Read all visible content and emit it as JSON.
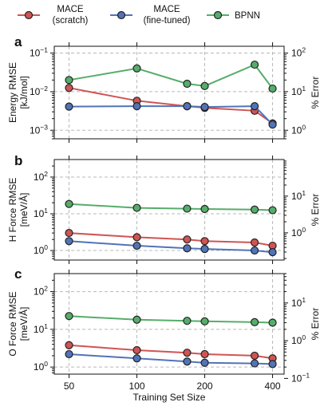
{
  "legend": [
    {
      "label_line1": "MACE",
      "label_line2": "(scratch)",
      "color": "#d05454"
    },
    {
      "label_line1": "MACE",
      "label_line2": "(fine-tuned)",
      "color": "#5173b7"
    },
    {
      "label_line1": "BPNN",
      "label_line2": "",
      "color": "#56ad6a"
    }
  ],
  "xlabel": "Training Set Size",
  "x_ticks": [
    50,
    100,
    200,
    400
  ],
  "chart_data": [
    {
      "panel": "a",
      "type": "line",
      "x_scale": "log",
      "y_scale": "log",
      "ylabel_line1": "Energy RMSE",
      "ylabel_line2": "[kJ/mol]",
      "y2label": "% Error",
      "ylim": [
        0.0006,
        0.15
      ],
      "y_ticks": [
        {
          "v": 0.001,
          "base": "10",
          "exp": "−3"
        },
        {
          "v": 0.01,
          "base": "10",
          "exp": "−2"
        },
        {
          "v": 0.1,
          "base": "10",
          "exp": "−1"
        }
      ],
      "y2_ticks": [
        {
          "v": 1,
          "base": "10",
          "exp": "0"
        },
        {
          "v": 10,
          "base": "10",
          "exp": "1"
        },
        {
          "v": 100,
          "base": "10",
          "exp": "2"
        }
      ],
      "y2_per_y": 1000,
      "series": [
        {
          "name": "MACE (scratch)",
          "color": "#d05454",
          "x": [
            50,
            100,
            167,
            200,
            333,
            400
          ],
          "y": [
            0.0125,
            0.0058,
            0.0042,
            0.0038,
            0.0032,
            0.0015
          ]
        },
        {
          "name": "MACE (fine-tuned)",
          "color": "#5173b7",
          "x": [
            50,
            100,
            167,
            200,
            333,
            400
          ],
          "y": [
            0.0041,
            0.0042,
            0.0042,
            0.004,
            0.0042,
            0.0014
          ]
        },
        {
          "name": "BPNN",
          "color": "#56ad6a",
          "x": [
            50,
            100,
            167,
            200,
            333,
            400
          ],
          "y": [
            0.02,
            0.04,
            0.016,
            0.014,
            0.05,
            0.012
          ]
        }
      ]
    },
    {
      "panel": "b",
      "type": "line",
      "x_scale": "log",
      "y_scale": "log",
      "ylabel_line1": "H Force RMSE",
      "ylabel_line2": "[meV/Å]",
      "y2label": "% Error",
      "ylim": [
        0.55,
        300
      ],
      "y_ticks": [
        {
          "v": 1,
          "base": "10",
          "exp": "0"
        },
        {
          "v": 10,
          "base": "10",
          "exp": "1"
        },
        {
          "v": 100,
          "base": "10",
          "exp": "2"
        }
      ],
      "y2_ticks": [
        {
          "v": 1,
          "base": "10",
          "exp": "0"
        },
        {
          "v": 10,
          "base": "10",
          "exp": "1"
        }
      ],
      "y2_per_y": 0.33,
      "series": [
        {
          "name": "MACE (scratch)",
          "color": "#d05454",
          "x": [
            50,
            100,
            167,
            200,
            333,
            400
          ],
          "y": [
            3.0,
            2.3,
            2.0,
            1.8,
            1.65,
            1.35
          ]
        },
        {
          "name": "MACE (fine-tuned)",
          "color": "#5173b7",
          "x": [
            50,
            100,
            167,
            200,
            333,
            400
          ],
          "y": [
            1.8,
            1.35,
            1.15,
            1.1,
            1.0,
            0.9
          ]
        },
        {
          "name": "BPNN",
          "color": "#56ad6a",
          "x": [
            50,
            100,
            167,
            200,
            333,
            400
          ],
          "y": [
            18.5,
            14.5,
            13.8,
            13.5,
            13.0,
            12.5
          ]
        }
      ]
    },
    {
      "panel": "c",
      "type": "line",
      "x_scale": "log",
      "y_scale": "log",
      "ylabel_line1": "O Force RMSE",
      "ylabel_line2": "[meV/Å]",
      "y2label": "% Error",
      "ylim": [
        0.65,
        300
      ],
      "y_ticks": [
        {
          "v": 1,
          "base": "10",
          "exp": "0"
        },
        {
          "v": 10,
          "base": "10",
          "exp": "1"
        },
        {
          "v": 100,
          "base": "10",
          "exp": "2"
        }
      ],
      "y2_ticks": [
        {
          "v": 0.1,
          "base": "10",
          "exp": "−1"
        },
        {
          "v": 1,
          "base": "10",
          "exp": "0"
        },
        {
          "v": 10,
          "base": "10",
          "exp": "1"
        }
      ],
      "y2_per_y": 0.2,
      "series": [
        {
          "name": "MACE (scratch)",
          "color": "#d05454",
          "x": [
            50,
            100,
            167,
            200,
            333,
            400
          ],
          "y": [
            3.8,
            2.8,
            2.4,
            2.2,
            2.0,
            1.7
          ]
        },
        {
          "name": "MACE (fine-tuned)",
          "color": "#5173b7",
          "x": [
            50,
            100,
            167,
            200,
            333,
            400
          ],
          "y": [
            2.2,
            1.7,
            1.4,
            1.3,
            1.25,
            1.2
          ]
        },
        {
          "name": "BPNN",
          "color": "#56ad6a",
          "x": [
            50,
            100,
            167,
            200,
            333,
            400
          ],
          "y": [
            22.5,
            18.0,
            16.8,
            16.3,
            15.5,
            15.0
          ]
        }
      ]
    }
  ]
}
